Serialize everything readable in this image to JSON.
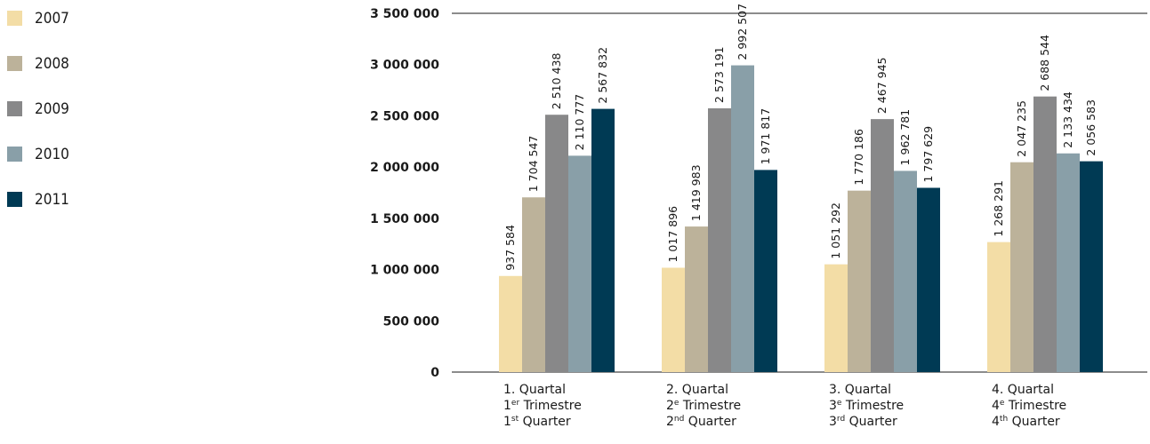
{
  "chart_data": {
    "type": "bar",
    "ylim": [
      0,
      3500000
    ],
    "yticks": [
      0,
      500000,
      1000000,
      1500000,
      2000000,
      2500000,
      3000000,
      3500000
    ],
    "ytick_labels": [
      "0",
      "500 000",
      "1 000 000",
      "1 500 000",
      "2 000 000",
      "2 500 000",
      "3 000 000",
      "3 500 000"
    ],
    "legend_position": "left",
    "categories": [
      {
        "lines": [
          [
            {
              "t": "1. Quartal"
            }
          ],
          [
            {
              "t": "1"
            },
            {
              "t": "er",
              "sup": true
            },
            {
              "t": " Trimestre"
            }
          ],
          [
            {
              "t": "1"
            },
            {
              "t": "st",
              "sup": true
            },
            {
              "t": " Quarter"
            }
          ]
        ]
      },
      {
        "lines": [
          [
            {
              "t": "2. Quartal"
            }
          ],
          [
            {
              "t": "2"
            },
            {
              "t": "e",
              "sup": true
            },
            {
              "t": " Trimestre"
            }
          ],
          [
            {
              "t": "2"
            },
            {
              "t": "nd",
              "sup": true
            },
            {
              "t": " Quarter"
            }
          ]
        ]
      },
      {
        "lines": [
          [
            {
              "t": "3. Quartal"
            }
          ],
          [
            {
              "t": "3"
            },
            {
              "t": "e",
              "sup": true
            },
            {
              "t": " Trimestre"
            }
          ],
          [
            {
              "t": "3"
            },
            {
              "t": "rd",
              "sup": true
            },
            {
              "t": " Quarter"
            }
          ]
        ]
      },
      {
        "lines": [
          [
            {
              "t": "4. Quartal"
            }
          ],
          [
            {
              "t": "4"
            },
            {
              "t": "e",
              "sup": true
            },
            {
              "t": " Trimestre"
            }
          ],
          [
            {
              "t": "4"
            },
            {
              "t": "th",
              "sup": true
            },
            {
              "t": " Quarter"
            }
          ]
        ]
      }
    ],
    "series": [
      {
        "name": "2007",
        "color": "#f3dda6",
        "values": [
          937584,
          1017896,
          1051292,
          1268291
        ],
        "labels": [
          "937 584",
          "1 017 896",
          "1 051 292",
          "1 268 291"
        ]
      },
      {
        "name": "2008",
        "color": "#bcb29a",
        "values": [
          1704547,
          1419983,
          1770186,
          2047235
        ],
        "labels": [
          "1 704 547",
          "1 419 983",
          "1 770 186",
          "2 047 235"
        ]
      },
      {
        "name": "2009",
        "color": "#888889",
        "values": [
          2510438,
          2573191,
          2467945,
          2688544
        ],
        "labels": [
          "2 510 438",
          "2 573 191",
          "2 467 945",
          "2 688 544"
        ]
      },
      {
        "name": "2010",
        "color": "#899fa8",
        "values": [
          2110777,
          2992507,
          1962781,
          2133434
        ],
        "labels": [
          "2 110 777",
          "2 992 507",
          "1 962 781",
          "2 133 434"
        ]
      },
      {
        "name": "2011",
        "color": "#003a54",
        "values": [
          2567832,
          1971817,
          1797629,
          2056583
        ],
        "labels": [
          "2 567 832",
          "1 971 817",
          "1 797 629",
          "2 056 583"
        ]
      }
    ]
  }
}
